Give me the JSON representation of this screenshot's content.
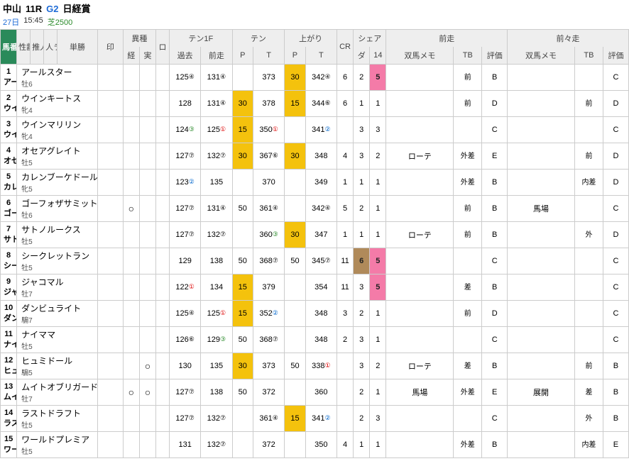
{
  "race": {
    "track": "中山",
    "number": "11R",
    "grade": "G2",
    "name": "日経賞",
    "date": "27日",
    "time": "15:45",
    "course": "芝2500"
  },
  "colors": {
    "accent_green": "#2a8a5a",
    "grade_blue": "#1e6bd6",
    "hl_gold": "#f4c20d",
    "hl_pink": "#f47ba8",
    "hl_brown": "#b08a5a",
    "border": "#cccccc",
    "header_bg": "#eeeeee"
  },
  "headers": {
    "umaban": "馬番",
    "seirei": "性齢",
    "suinin": "推人",
    "hitora": "人ラ",
    "tansho": "単勝",
    "mark": "印",
    "ishu": "異種",
    "ishu_kei": "経",
    "ishu_jitsu": "実",
    "ro": "ロ",
    "ten1f": "テン1F",
    "ten1f_past": "過去",
    "ten1f_prev": "前走",
    "ten": "テン",
    "ten_p": "P",
    "ten_t": "T",
    "agari": "上がり",
    "agari_p": "P",
    "agari_t": "T",
    "cr": "CR",
    "share": "シェア",
    "share_da": "ダ",
    "share_14": "14",
    "zensou": "前走",
    "zenzensou": "前々走",
    "memo": "双馬メモ",
    "tb": "TB",
    "eval": "評価"
  },
  "rows": [
    {
      "num": "1",
      "abbr": "アール",
      "name": "アールスター",
      "sex": "牡6",
      "ten1f_past": "125",
      "ten1f_past_rank": "④",
      "ten1f_prev": "131",
      "ten1f_prev_rank": "④",
      "ten_p": "",
      "ten_t": "373",
      "agari_p": "30",
      "agari_p_hl": "gold",
      "agari_t": "342",
      "agari_t_rank": "④",
      "cr": "6",
      "sda": "2",
      "s14": "5",
      "s14_hl": "pink",
      "z_memo": "",
      "z_tb": "前",
      "z_eval": "B",
      "zz_memo": "",
      "zz_tb": "",
      "zz_eval": "C"
    },
    {
      "num": "2",
      "abbr": "ウイン",
      "name": "ウインキートス",
      "sex": "牝4",
      "ten1f_past": "128",
      "ten1f_prev": "131",
      "ten1f_prev_rank": "④",
      "ten_p": "30",
      "ten_p_hl": "gold",
      "ten_t": "378",
      "agari_p": "15",
      "agari_p_hl": "gold",
      "agari_t": "344",
      "agari_t_rank": "⑥",
      "cr": "6",
      "sda": "1",
      "s14": "1",
      "z_memo": "",
      "z_tb": "前",
      "z_eval": "D",
      "zz_memo": "",
      "zz_tb": "前",
      "zz_eval": "D"
    },
    {
      "num": "3",
      "abbr": "ウイン",
      "name": "ウインマリリン",
      "sex": "牝4",
      "ten1f_past": "124",
      "ten1f_past_rank": "③",
      "ten1f_past_rank_cls": "rank-3",
      "ten1f_prev": "125",
      "ten1f_prev_rank": "①",
      "ten1f_prev_rank_cls": "rank-1",
      "ten_p": "15",
      "ten_p_hl": "gold",
      "ten_t": "350",
      "ten_t_rank": "①",
      "ten_t_rank_cls": "rank-1",
      "agari_p": "",
      "agari_t": "341",
      "agari_t_rank": "②",
      "agari_t_rank_cls": "rank-2",
      "cr": "",
      "sda": "3",
      "s14": "3",
      "z_memo": "",
      "z_tb": "",
      "z_eval": "C",
      "zz_memo": "",
      "zz_tb": "",
      "zz_eval": "C"
    },
    {
      "num": "4",
      "abbr": "オセア",
      "name": "オセアグレイト",
      "sex": "牡5",
      "ten1f_past": "127",
      "ten1f_past_rank": "⑦",
      "ten1f_prev": "132",
      "ten1f_prev_rank": "⑦",
      "ten_p": "30",
      "ten_p_hl": "gold",
      "ten_t": "367",
      "ten_t_rank": "⑥",
      "agari_p": "30",
      "agari_p_hl": "gold",
      "agari_t": "348",
      "cr": "4",
      "sda": "3",
      "s14": "2",
      "z_memo": "ローテ",
      "z_tb": "外差",
      "z_eval": "E",
      "zz_memo": "",
      "zz_tb": "前",
      "zz_eval": "D"
    },
    {
      "num": "5",
      "abbr": "カレン",
      "name": "カレンブーケドール",
      "sex": "牝5",
      "ten1f_past": "123",
      "ten1f_past_rank": "②",
      "ten1f_past_rank_cls": "rank-2",
      "ten1f_prev": "135",
      "ten_p": "",
      "ten_t": "370",
      "agari_p": "",
      "agari_t": "349",
      "cr": "1",
      "sda": "1",
      "s14": "1",
      "z_memo": "",
      "z_tb": "外差",
      "z_eval": "B",
      "zz_memo": "",
      "zz_tb": "内差",
      "zz_eval": "D"
    },
    {
      "num": "6",
      "abbr": "ゴーフ",
      "name": "ゴーフォザサミット",
      "sex": "牡6",
      "ishu_kei": "○",
      "ten1f_past": "127",
      "ten1f_past_rank": "⑦",
      "ten1f_prev": "131",
      "ten1f_prev_rank": "④",
      "ten_p": "50",
      "ten_t": "361",
      "ten_t_rank": "④",
      "agari_p": "",
      "agari_t": "342",
      "agari_t_rank": "④",
      "cr": "5",
      "sda": "2",
      "s14": "1",
      "z_memo": "",
      "z_tb": "前",
      "z_eval": "B",
      "zz_memo": "馬場",
      "zz_tb": "",
      "zz_eval": "C"
    },
    {
      "num": "7",
      "abbr": "サトノ",
      "name": "サトノルークス",
      "sex": "牡5",
      "ten1f_past": "127",
      "ten1f_past_rank": "⑦",
      "ten1f_prev": "132",
      "ten1f_prev_rank": "⑦",
      "ten_p": "",
      "ten_t": "360",
      "ten_t_rank": "③",
      "ten_t_rank_cls": "rank-3",
      "agari_p": "30",
      "agari_p_hl": "gold",
      "agari_t": "347",
      "cr": "1",
      "sda": "1",
      "s14": "1",
      "z_memo": "ローテ",
      "z_tb": "前",
      "z_eval": "B",
      "zz_memo": "",
      "zz_tb": "外",
      "zz_eval": "D"
    },
    {
      "num": "8",
      "abbr": "シーク",
      "name": "シークレットラン",
      "sex": "牡5",
      "ten1f_past": "129",
      "ten1f_prev": "138",
      "ten_p": "50",
      "ten_t": "368",
      "ten_t_rank": "⑦",
      "agari_p": "50",
      "agari_t": "345",
      "agari_t_rank": "⑦",
      "cr": "11",
      "sda": "6",
      "sda_hl": "brown",
      "s14": "5",
      "s14_hl": "pink",
      "z_memo": "",
      "z_tb": "",
      "z_eval": "C",
      "zz_memo": "",
      "zz_tb": "",
      "zz_eval": "C"
    },
    {
      "num": "9",
      "abbr": "ジャコ",
      "name": "ジャコマル",
      "sex": "牡7",
      "ten1f_past": "122",
      "ten1f_past_rank": "①",
      "ten1f_past_rank_cls": "rank-1",
      "ten1f_prev": "134",
      "ten_p": "15",
      "ten_p_hl": "gold",
      "ten_t": "379",
      "agari_p": "",
      "agari_t": "354",
      "cr": "11",
      "sda": "3",
      "s14": "5",
      "s14_hl": "pink",
      "z_memo": "",
      "z_tb": "差",
      "z_eval": "B",
      "zz_memo": "",
      "zz_tb": "",
      "zz_eval": "C"
    },
    {
      "num": "10",
      "abbr": "ダンビ",
      "name": "ダンビュライト",
      "sex": "騸7",
      "ten1f_past": "125",
      "ten1f_past_rank": "④",
      "ten1f_prev": "125",
      "ten1f_prev_rank": "①",
      "ten1f_prev_rank_cls": "rank-1",
      "ten_p": "15",
      "ten_p_hl": "gold",
      "ten_t": "352",
      "ten_t_rank": "②",
      "ten_t_rank_cls": "rank-2",
      "agari_p": "",
      "agari_t": "348",
      "cr": "3",
      "sda": "2",
      "s14": "1",
      "z_memo": "",
      "z_tb": "前",
      "z_eval": "D",
      "zz_memo": "",
      "zz_tb": "",
      "zz_eval": "C"
    },
    {
      "num": "11",
      "abbr": "ナイマ",
      "name": "ナイママ",
      "sex": "牡5",
      "ten1f_past": "126",
      "ten1f_past_rank": "⑥",
      "ten1f_prev": "129",
      "ten1f_prev_rank": "③",
      "ten1f_prev_rank_cls": "rank-3",
      "ten_p": "50",
      "ten_t": "368",
      "ten_t_rank": "⑦",
      "agari_p": "",
      "agari_t": "348",
      "cr": "2",
      "sda": "3",
      "s14": "1",
      "z_memo": "",
      "z_tb": "",
      "z_eval": "C",
      "zz_memo": "",
      "zz_tb": "",
      "zz_eval": "C"
    },
    {
      "num": "12",
      "abbr": "ヒュミ",
      "name": "ヒュミドール",
      "sex": "騸5",
      "ishu_jitsu": "○",
      "ten1f_past": "130",
      "ten1f_prev": "135",
      "ten_p": "30",
      "ten_p_hl": "gold",
      "ten_t": "373",
      "agari_p": "50",
      "agari_t": "338",
      "agari_t_rank": "①",
      "agari_t_rank_cls": "rank-1",
      "cr": "",
      "sda": "3",
      "s14": "2",
      "z_memo": "ローテ",
      "z_tb": "差",
      "z_eval": "B",
      "zz_memo": "",
      "zz_tb": "前",
      "zz_eval": "B"
    },
    {
      "num": "13",
      "abbr": "ムイト",
      "name": "ムイトオブリガード",
      "sex": "牡7",
      "ishu_kei": "○",
      "ishu_jitsu": "○",
      "ten1f_past": "127",
      "ten1f_past_rank": "⑦",
      "ten1f_prev": "138",
      "ten_p": "50",
      "ten_t": "372",
      "agari_p": "",
      "agari_t": "360",
      "cr": "",
      "sda": "2",
      "s14": "1",
      "z_memo": "馬場",
      "z_tb": "外差",
      "z_eval": "E",
      "zz_memo": "展開",
      "zz_tb": "差",
      "zz_eval": "B"
    },
    {
      "num": "14",
      "abbr": "ラスト",
      "name": "ラストドラフト",
      "sex": "牡5",
      "ten1f_past": "127",
      "ten1f_past_rank": "⑦",
      "ten1f_prev": "132",
      "ten1f_prev_rank": "⑦",
      "ten_p": "",
      "ten_t": "361",
      "ten_t_rank": "④",
      "agari_p": "15",
      "agari_p_hl": "gold",
      "agari_t": "341",
      "agari_t_rank": "②",
      "agari_t_rank_cls": "rank-2",
      "cr": "",
      "sda": "2",
      "s14": "3",
      "z_memo": "",
      "z_tb": "",
      "z_eval": "C",
      "zz_memo": "",
      "zz_tb": "外",
      "zz_eval": "B"
    },
    {
      "num": "15",
      "abbr": "ワール",
      "name": "ワールドプレミア",
      "sex": "牡5",
      "ten1f_past": "131",
      "ten1f_prev": "132",
      "ten1f_prev_rank": "⑦",
      "ten_p": "",
      "ten_t": "372",
      "agari_p": "",
      "agari_t": "350",
      "cr": "4",
      "sda": "1",
      "s14": "1",
      "z_memo": "",
      "z_tb": "外差",
      "z_eval": "B",
      "zz_memo": "",
      "zz_tb": "内差",
      "zz_eval": "E"
    }
  ]
}
